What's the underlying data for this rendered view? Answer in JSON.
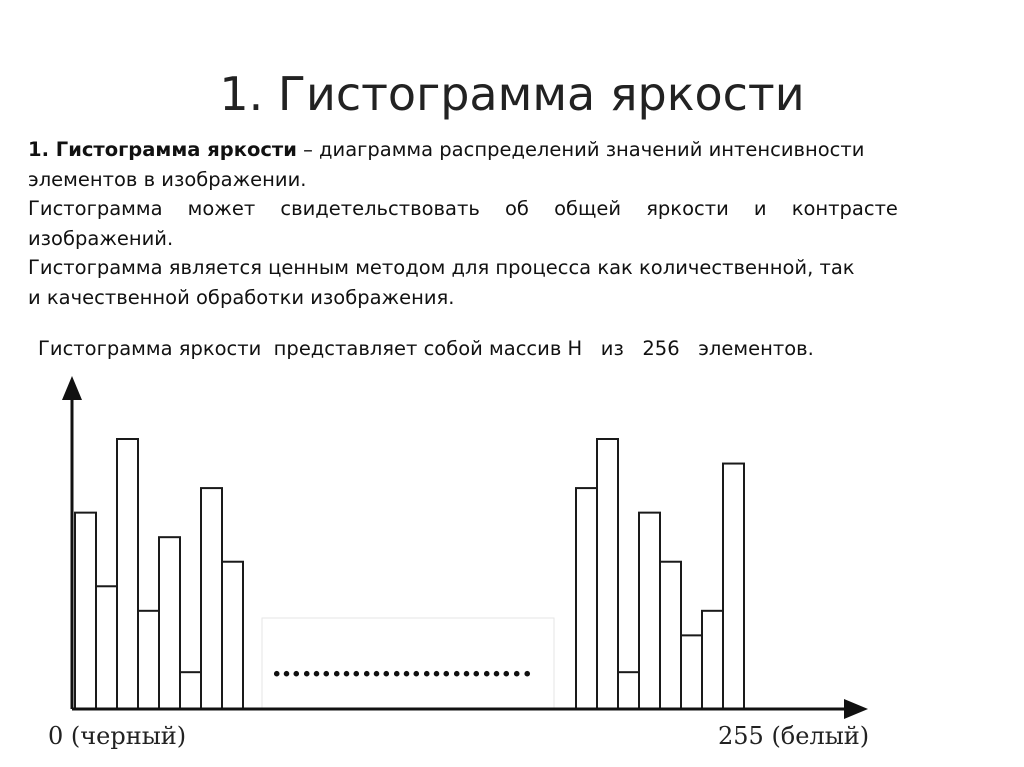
{
  "slide": {
    "title": "1. Гистограмма яркости"
  },
  "body": {
    "definition_term": "1. Гистограмма яркости",
    "definition_rest_line1": " – диаграмма распределений значений интенсивности",
    "definition_line2": "элементов в   изображении.",
    "line3_words": [
      "Гистограмма",
      "может",
      "свидетельствовать",
      "об",
      "общей",
      "яркости",
      "и",
      "контрасте"
    ],
    "line4": "изображений.",
    "line5": "Гистограмма является ценным методом для процесса как количественной, так",
    "line6": "и качественной обработки изображения."
  },
  "summary": "Гистограмма яркости  представляет собой массив H   из   256   элементов.",
  "chart_data": {
    "type": "bar",
    "description_note": "",
    "left_group_values": [
      8,
      5,
      11,
      4,
      7,
      1.5,
      9,
      6
    ],
    "right_group_values": [
      9,
      11,
      1.5,
      8,
      6,
      3,
      4,
      10
    ],
    "gap_label": "……………………..",
    "ylim": [
      0,
      13
    ],
    "x_start_label": "0 (черный)",
    "x_end_label": "255 (белый)",
    "bar_fill": "#ffffff",
    "bar_stroke": "#1a1a1a"
  }
}
